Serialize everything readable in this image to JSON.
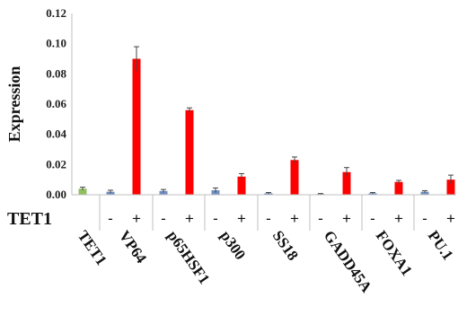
{
  "chart_data": {
    "type": "bar",
    "ylabel": "Expression",
    "ylim": [
      0,
      0.12
    ],
    "yticks": [
      "0.00",
      "0.02",
      "0.04",
      "0.06",
      "0.08",
      "0.10",
      "0.12"
    ],
    "grid": false,
    "row_label": "TET1",
    "sign_minus": "-",
    "sign_plus": "+",
    "categories": [
      "TET1",
      "VP64",
      "p65HSF1",
      "p300",
      "SS18",
      "GADD45A",
      "FOXA1",
      "PU.1"
    ],
    "bars": [
      {
        "category": "TET1",
        "tet1": "",
        "value": 0.004,
        "error": 0.001,
        "color": "#8fbf5f"
      },
      {
        "category": "VP64",
        "tet1": "-",
        "value": 0.002,
        "error": 0.001,
        "color": "#6f8fbf"
      },
      {
        "category": "VP64",
        "tet1": "+",
        "value": 0.09,
        "error": 0.008,
        "color": "#ff0000"
      },
      {
        "category": "p65HSF1",
        "tet1": "-",
        "value": 0.0025,
        "error": 0.001,
        "color": "#6f8fbf"
      },
      {
        "category": "p65HSF1",
        "tet1": "+",
        "value": 0.056,
        "error": 0.0015,
        "color": "#ff0000"
      },
      {
        "category": "p300",
        "tet1": "-",
        "value": 0.003,
        "error": 0.0015,
        "color": "#6f8fbf"
      },
      {
        "category": "p300",
        "tet1": "+",
        "value": 0.012,
        "error": 0.002,
        "color": "#ff0000"
      },
      {
        "category": "SS18",
        "tet1": "-",
        "value": 0.001,
        "error": 0.0005,
        "color": "#6f8fbf"
      },
      {
        "category": "SS18",
        "tet1": "+",
        "value": 0.023,
        "error": 0.002,
        "color": "#ff0000"
      },
      {
        "category": "GADD45A",
        "tet1": "-",
        "value": 0.0005,
        "error": 0.0003,
        "color": "#6f8fbf"
      },
      {
        "category": "GADD45A",
        "tet1": "+",
        "value": 0.015,
        "error": 0.003,
        "color": "#ff0000"
      },
      {
        "category": "FOXA1",
        "tet1": "-",
        "value": 0.001,
        "error": 0.0005,
        "color": "#6f8fbf"
      },
      {
        "category": "FOXA1",
        "tet1": "+",
        "value": 0.0085,
        "error": 0.001,
        "color": "#ff0000"
      },
      {
        "category": "PU.1",
        "tet1": "-",
        "value": 0.002,
        "error": 0.0007,
        "color": "#6f8fbf"
      },
      {
        "category": "PU.1",
        "tet1": "+",
        "value": 0.01,
        "error": 0.003,
        "color": "#ff0000"
      }
    ],
    "colors": {
      "axis": "#bfbfbf",
      "error_bar": "#444444"
    }
  }
}
